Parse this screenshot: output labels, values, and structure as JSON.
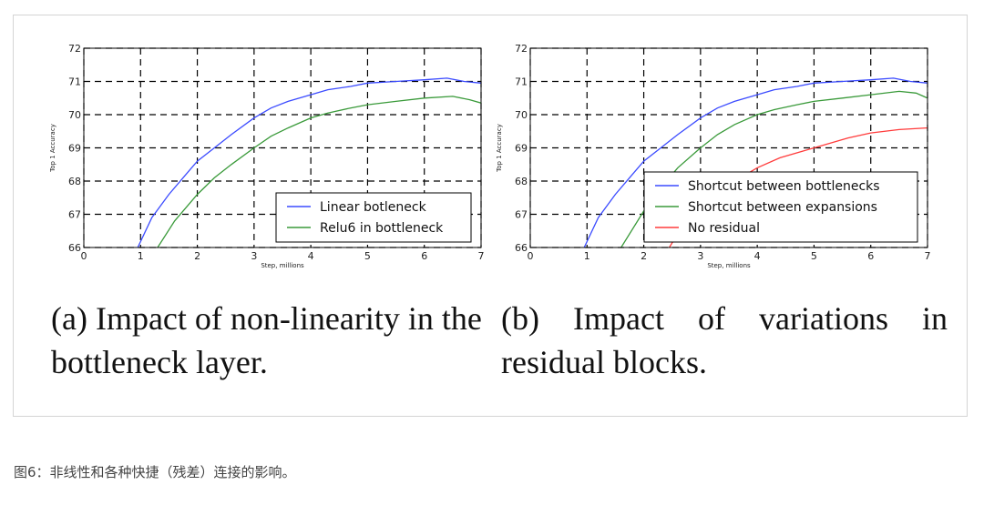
{
  "figure": {
    "caption_a": "(a) Impact of non-linearity in the bottleneck layer.",
    "caption_b": "(b)  Impact  of  variations  in residual blocks.",
    "figure_caption": "图6：非线性和各种快捷（残差）连接的影响。"
  },
  "chart_data": [
    {
      "type": "line",
      "xlabel": "Step, millions",
      "ylabel": "Top 1 Accuracy",
      "xlim": [
        0,
        7
      ],
      "ylim": [
        66,
        72
      ],
      "xticks": [
        0,
        1,
        2,
        3,
        4,
        5,
        6,
        7
      ],
      "yticks": [
        66,
        67,
        68,
        69,
        70,
        71,
        72
      ],
      "grid": true,
      "legend_position": "lower-right",
      "series": [
        {
          "name": "Linear botleneck",
          "color": "#3b4bff",
          "x": [
            0.95,
            1.2,
            1.5,
            1.8,
            2.0,
            2.3,
            2.6,
            3.0,
            3.3,
            3.6,
            4.0,
            4.3,
            4.7,
            5.0,
            5.5,
            6.0,
            6.4,
            6.7,
            7.0
          ],
          "y": [
            66.0,
            66.9,
            67.6,
            68.2,
            68.6,
            69.0,
            69.4,
            69.9,
            70.2,
            70.4,
            70.6,
            70.75,
            70.85,
            70.95,
            71.0,
            71.05,
            71.1,
            71.0,
            70.95
          ]
        },
        {
          "name": "Relu6 in bottleneck",
          "color": "#3a9a3a",
          "x": [
            1.3,
            1.6,
            2.0,
            2.3,
            2.6,
            3.0,
            3.3,
            3.6,
            4.0,
            4.3,
            4.7,
            5.0,
            5.5,
            6.0,
            6.5,
            6.8,
            7.0
          ],
          "y": [
            66.0,
            66.8,
            67.6,
            68.1,
            68.5,
            69.0,
            69.35,
            69.6,
            69.9,
            70.05,
            70.2,
            70.3,
            70.4,
            70.5,
            70.55,
            70.45,
            70.35
          ]
        }
      ]
    },
    {
      "type": "line",
      "xlabel": "Step, millions",
      "ylabel": "Top 1 Accuracy",
      "xlim": [
        0,
        7
      ],
      "ylim": [
        66,
        72
      ],
      "xticks": [
        0,
        1,
        2,
        3,
        4,
        5,
        6,
        7
      ],
      "yticks": [
        66,
        67,
        68,
        69,
        70,
        71,
        72
      ],
      "grid": true,
      "legend_position": "lower-right",
      "series": [
        {
          "name": "Shortcut between bottlenecks",
          "color": "#3b4bff",
          "x": [
            0.95,
            1.2,
            1.5,
            1.8,
            2.0,
            2.3,
            2.6,
            3.0,
            3.3,
            3.6,
            4.0,
            4.3,
            4.7,
            5.0,
            5.5,
            6.0,
            6.4,
            6.7,
            7.0
          ],
          "y": [
            66.0,
            66.9,
            67.6,
            68.2,
            68.6,
            69.0,
            69.4,
            69.9,
            70.2,
            70.4,
            70.6,
            70.75,
            70.85,
            70.95,
            71.0,
            71.05,
            71.1,
            71.0,
            70.95
          ]
        },
        {
          "name": "Shortcut between expansions",
          "color": "#3a9a3a",
          "x": [
            1.6,
            2.0,
            2.3,
            2.6,
            3.0,
            3.3,
            3.6,
            4.0,
            4.3,
            4.7,
            5.0,
            5.5,
            6.0,
            6.5,
            6.8,
            7.0
          ],
          "y": [
            66.0,
            67.1,
            67.8,
            68.4,
            69.0,
            69.4,
            69.7,
            70.0,
            70.15,
            70.3,
            70.4,
            70.5,
            70.6,
            70.7,
            70.65,
            70.5
          ]
        },
        {
          "name": "No residual",
          "color": "#ff3b3b",
          "x": [
            2.45,
            2.7,
            3.0,
            3.3,
            3.7,
            4.0,
            4.4,
            4.8,
            5.2,
            5.6,
            6.0,
            6.5,
            7.0
          ],
          "y": [
            66.0,
            66.7,
            67.3,
            67.7,
            68.1,
            68.4,
            68.7,
            68.9,
            69.1,
            69.3,
            69.45,
            69.55,
            69.6
          ]
        }
      ]
    }
  ]
}
